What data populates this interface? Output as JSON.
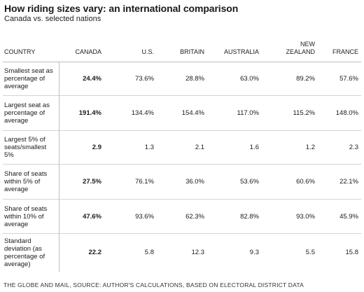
{
  "title": "How riding sizes vary: an international comparison",
  "subtitle": "Canada vs. selected nations",
  "source": "THE GLOBE AND MAIL, SOURCE: AUTHOR'S CALCULATIONS, BASED ON ELECTORAL DISTRICT DATA",
  "columns": [
    "COUNTRY",
    "CANADA",
    "U.S.",
    "BRITAIN",
    "AUSTRALIA",
    "NEW\nZEALAND",
    "FRANCE"
  ],
  "rows": [
    {
      "label": "Smallest seat as percentage of average",
      "values": [
        "24.4%",
        "73.6%",
        "28.8%",
        "63.0%",
        "89.2%",
        "57.6%"
      ]
    },
    {
      "label": "Largest seat as percentage of average",
      "values": [
        "191.4%",
        "134.4%",
        "154.4%",
        "117.0%",
        "115.2%",
        "148.0%"
      ]
    },
    {
      "label": "Largest 5% of seats/smallest 5%",
      "values": [
        "2.9",
        "1.3",
        "2.1",
        "1.6",
        "1.2",
        "2.3"
      ]
    },
    {
      "label": "Share of seats within 5% of average",
      "values": [
        "27.5%",
        "76.1%",
        "36.0%",
        "53.6%",
        "60.6%",
        "22.1%"
      ]
    },
    {
      "label": "Share of seats within 10% of average",
      "values": [
        "47.6%",
        "93.6%",
        "62.3%",
        "82.8%",
        "93.0%",
        "45.9%"
      ]
    },
    {
      "label": "Standard deviation (as percentage of average)",
      "values": [
        "22.2",
        "5.8",
        "12.3",
        "9.3",
        "5.5",
        "15.8"
      ]
    }
  ],
  "chart_data": {
    "type": "table",
    "title": "How riding sizes vary: an international comparison",
    "subtitle": "Canada vs. selected nations",
    "columns": [
      "CANADA",
      "U.S.",
      "BRITAIN",
      "AUSTRALIA",
      "NEW ZEALAND",
      "FRANCE"
    ],
    "rows": [
      {
        "metric": "Smallest seat as percentage of average",
        "values": [
          24.4,
          73.6,
          28.8,
          63.0,
          89.2,
          57.6
        ]
      },
      {
        "metric": "Largest seat as percentage of average",
        "values": [
          191.4,
          134.4,
          154.4,
          117.0,
          115.2,
          148.0
        ]
      },
      {
        "metric": "Largest 5% of seats/smallest 5%",
        "values": [
          2.9,
          1.3,
          2.1,
          1.6,
          1.2,
          2.3
        ]
      },
      {
        "metric": "Share of seats within 5% of average",
        "values": [
          27.5,
          76.1,
          36.0,
          53.6,
          60.6,
          22.1
        ]
      },
      {
        "metric": "Share of seats within 10% of average",
        "values": [
          47.6,
          93.6,
          62.3,
          82.8,
          93.0,
          45.9
        ]
      },
      {
        "metric": "Standard deviation (as percentage of average)",
        "values": [
          22.2,
          5.8,
          12.3,
          9.3,
          5.5,
          15.8
        ]
      }
    ]
  }
}
